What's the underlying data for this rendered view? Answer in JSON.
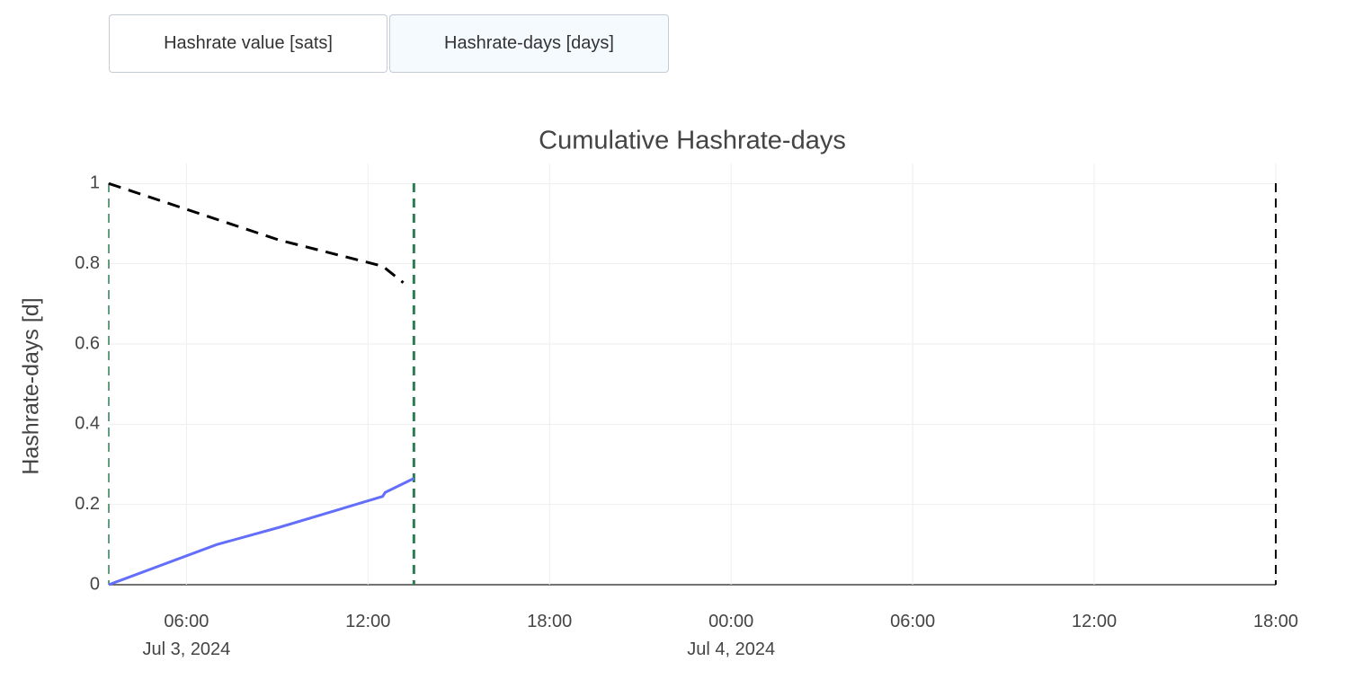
{
  "buttons": [
    "Hashrate value [sats]",
    "Hashrate-days [days]"
  ],
  "active_button": 1,
  "chart_data": {
    "type": "line",
    "title": "Cumulative Hashrate-days",
    "y_label": "Hashrate-days [d]",
    "xlim": [
      "2024-07-03T03:26",
      "2024-07-04T18:00"
    ],
    "xticks": [
      {
        "value": "2024-07-03T06:00",
        "label": "06:00\nJul 3, 2024"
      },
      {
        "value": "2024-07-03T12:00",
        "label": "12:00"
      },
      {
        "value": "2024-07-03T18:00",
        "label": "18:00"
      },
      {
        "value": "2024-07-04T00:00",
        "label": "00:00\nJul 4, 2024"
      },
      {
        "value": "2024-07-04T06:00",
        "label": "06:00"
      },
      {
        "value": "2024-07-04T12:00",
        "label": "12:00"
      },
      {
        "value": "2024-07-04T18:00",
        "label": "18:00"
      }
    ],
    "ylim": [
      0,
      1.05
    ],
    "yticks": [
      0,
      0.2,
      0.4,
      0.6,
      0.8,
      1
    ],
    "grid": true,
    "series": [
      {
        "color": "#636efa",
        "dash": false,
        "x": [
          "2024-07-03T03:26",
          "2024-07-03T07:00",
          "2024-07-03T09:04",
          "2024-07-03T12:29",
          "2024-07-03T12:34",
          "2024-07-03T13:31"
        ],
        "values": [
          0,
          0.1,
          0.143,
          0.22,
          0.23,
          0.265
        ]
      },
      {
        "color": "#000000",
        "dash": true,
        "x": [
          "2024-07-03T03:26",
          "2024-07-03T09:04",
          "2024-07-03T12:29",
          "2024-07-03T13:10"
        ],
        "values": [
          1,
          0.859,
          0.794,
          0.753
        ]
      }
    ],
    "vlines": [
      {
        "x": "2024-07-03T03:26",
        "color": "#2e7d55",
        "width": 1.5
      },
      {
        "x": "2024-07-03T13:31",
        "color": "#2e7d55",
        "width": 3
      },
      {
        "x": "2024-07-04T18:00",
        "color": "#000000",
        "width": 2
      }
    ]
  }
}
